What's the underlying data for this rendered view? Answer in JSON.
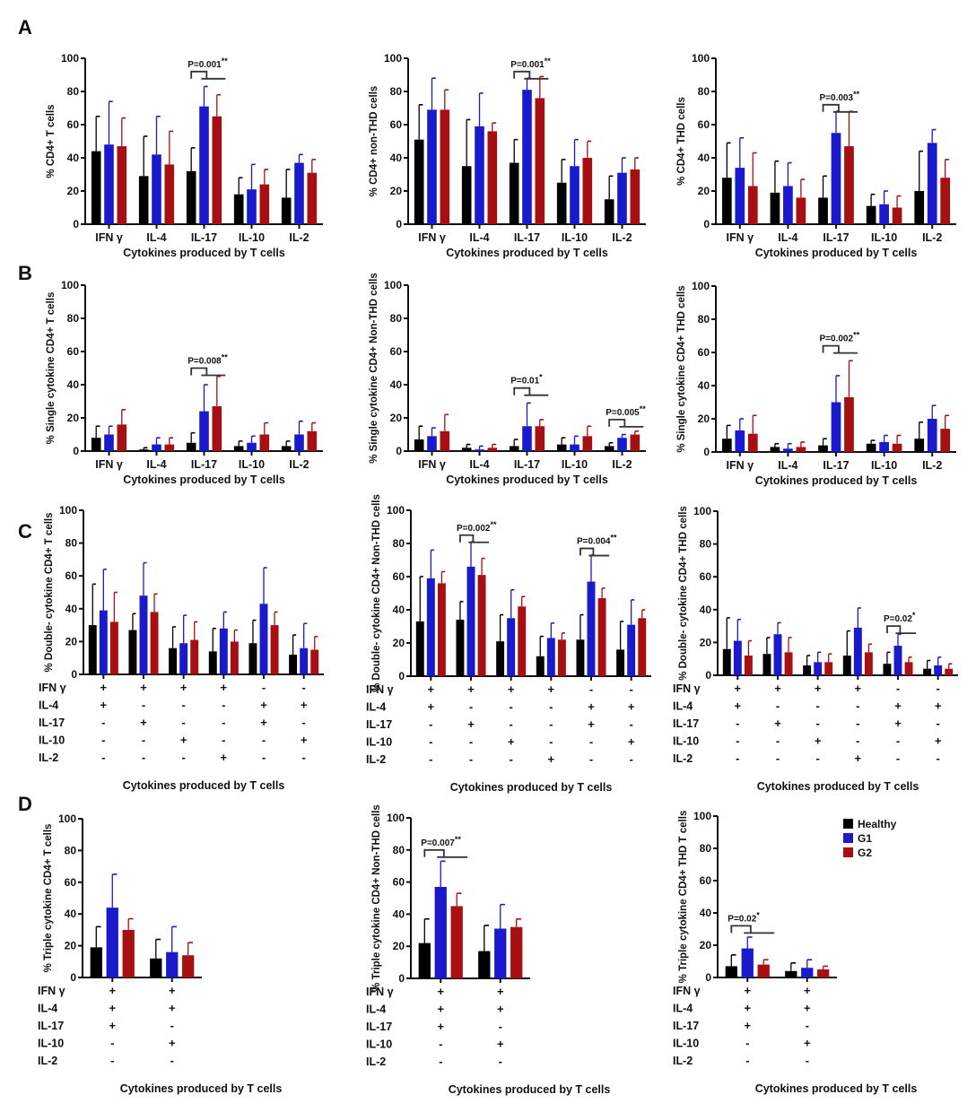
{
  "colors": {
    "Healthy": "#000000",
    "G1": "#1a1acc",
    "G2": "#a80f12",
    "axis": "#111111",
    "bracket": "#333333"
  },
  "panel_letters": [
    "A",
    "B",
    "C",
    "D"
  ],
  "legend": [
    {
      "label": "Healthy",
      "color": "#000000"
    },
    {
      "label": "G1",
      "color": "#1a1acc"
    },
    {
      "label": "G2",
      "color": "#a80f12"
    }
  ],
  "chart_data": [
    {
      "id": "A1",
      "panel": "A",
      "type": "bar",
      "title": "",
      "xlabel": "Cytokines produced by T cells",
      "ylabel": "% CD4+ T cells",
      "ylim": [
        0,
        100
      ],
      "yticks": [
        0,
        20,
        40,
        60,
        80,
        100
      ],
      "grid": false,
      "categories": [
        "IFN γ",
        "IL-4",
        "IL-17",
        "IL-10",
        "IL-2"
      ],
      "series": [
        {
          "name": "Healthy",
          "values": [
            44,
            29,
            32,
            18,
            16
          ],
          "errors": [
            21,
            24,
            14,
            10,
            17
          ]
        },
        {
          "name": "G1",
          "values": [
            48,
            42,
            71,
            21,
            37
          ],
          "errors": [
            26,
            23,
            12,
            15,
            5
          ]
        },
        {
          "name": "G2",
          "values": [
            47,
            36,
            65,
            24,
            31
          ],
          "errors": [
            17,
            20,
            13,
            9,
            8
          ]
        }
      ],
      "annotations": [
        {
          "category": 2,
          "label": "P=0.001",
          "stars": "**",
          "y": 92
        }
      ]
    },
    {
      "id": "A2",
      "panel": "A",
      "type": "bar",
      "title": "",
      "xlabel": "Cytokines produced by T cells",
      "ylabel": "% CD4+ non-THD cells",
      "ylim": [
        0,
        100
      ],
      "yticks": [
        0,
        20,
        40,
        60,
        80,
        100
      ],
      "grid": false,
      "categories": [
        "IFN γ",
        "IL-4",
        "IL-17",
        "IL-10",
        "IL-2"
      ],
      "series": [
        {
          "name": "Healthy",
          "values": [
            51,
            35,
            37,
            25,
            15
          ],
          "errors": [
            21,
            28,
            14,
            14,
            14
          ]
        },
        {
          "name": "G1",
          "values": [
            69,
            59,
            81,
            35,
            31
          ],
          "errors": [
            19,
            20,
            7,
            16,
            9
          ]
        },
        {
          "name": "G2",
          "values": [
            69,
            56,
            76,
            40,
            33
          ],
          "errors": [
            12,
            5,
            13,
            10,
            7
          ]
        }
      ],
      "annotations": [
        {
          "category": 2,
          "label": "P=0.001",
          "stars": "**",
          "y": 92
        }
      ]
    },
    {
      "id": "A3",
      "panel": "A",
      "type": "bar",
      "title": "",
      "xlabel": "Cytokines produced by T cells",
      "ylabel": "% CD4+ THD  cells",
      "ylim": [
        0,
        100
      ],
      "yticks": [
        0,
        20,
        40,
        60,
        80,
        100
      ],
      "grid": false,
      "categories": [
        "IFN γ",
        "IL-4",
        "IL-17",
        "IL-10",
        "IL-2"
      ],
      "series": [
        {
          "name": "Healthy",
          "values": [
            28,
            19,
            16,
            11,
            20
          ],
          "errors": [
            21,
            19,
            13,
            7,
            24
          ]
        },
        {
          "name": "G1",
          "values": [
            34,
            23,
            55,
            12,
            49
          ],
          "errors": [
            18,
            14,
            13,
            8,
            8
          ]
        },
        {
          "name": "G2",
          "values": [
            23,
            16,
            47,
            10,
            28
          ],
          "errors": [
            20,
            11,
            21,
            7,
            11
          ]
        }
      ],
      "annotations": [
        {
          "category": 2,
          "label": "P=0.003",
          "stars": "**",
          "y": 72
        }
      ]
    },
    {
      "id": "B1",
      "panel": "B",
      "type": "bar",
      "title": "",
      "xlabel": "Cytokines produced by T cells",
      "ylabel": "% Single cytokine CD4+ T cells",
      "ylim": [
        0,
        100
      ],
      "yticks": [
        0,
        20,
        40,
        60,
        80,
        100
      ],
      "grid": false,
      "categories": [
        "IFN γ",
        "IL-4",
        "IL-17",
        "IL-10",
        "IL-2"
      ],
      "series": [
        {
          "name": "Healthy",
          "values": [
            8,
            1,
            5,
            3,
            3
          ],
          "errors": [
            7,
            1,
            6,
            3,
            3
          ]
        },
        {
          "name": "G1",
          "values": [
            10,
            4,
            24,
            5,
            10
          ],
          "errors": [
            5,
            4,
            16,
            4,
            8
          ]
        },
        {
          "name": "G2",
          "values": [
            16,
            4,
            27,
            10,
            12
          ],
          "errors": [
            9,
            4,
            18,
            7,
            5
          ]
        }
      ],
      "annotations": [
        {
          "category": 2,
          "label": "P=0.008",
          "stars": "**",
          "y": 50
        }
      ]
    },
    {
      "id": "B2",
      "panel": "B",
      "type": "bar",
      "title": "",
      "xlabel": "Cytokines produced by T cells",
      "ylabel": "% Single cytokine CD4+ Non-THD cells",
      "ylim": [
        0,
        100
      ],
      "yticks": [
        0,
        20,
        40,
        60,
        80,
        100
      ],
      "grid": false,
      "categories": [
        "IFN γ",
        "IL-4",
        "IL-17",
        "IL-10",
        "IL-2"
      ],
      "series": [
        {
          "name": "Healthy",
          "values": [
            7,
            2,
            3,
            4,
            3
          ],
          "errors": [
            8,
            2,
            4,
            4,
            2
          ]
        },
        {
          "name": "G1",
          "values": [
            9,
            1,
            15,
            4,
            8
          ],
          "errors": [
            5,
            2,
            14,
            5,
            2
          ]
        },
        {
          "name": "G2",
          "values": [
            12,
            2,
            15,
            9,
            10
          ],
          "errors": [
            10,
            2,
            4,
            6,
            2
          ]
        }
      ],
      "annotations": [
        {
          "category": 2,
          "label": "P=0.01",
          "stars": "*",
          "y": 38
        },
        {
          "category": 4,
          "label": "P=0.005",
          "stars": "**",
          "y": 19
        }
      ]
    },
    {
      "id": "B3",
      "panel": "B",
      "type": "bar",
      "title": "",
      "xlabel": "Cytokines produced by T cells",
      "ylabel": "% Single cytokine CD4+ THD cells",
      "ylim": [
        0,
        100
      ],
      "yticks": [
        0,
        20,
        40,
        60,
        80,
        100
      ],
      "grid": false,
      "categories": [
        "IFN γ",
        "IL-4",
        "IL-17",
        "IL-10",
        "IL-2"
      ],
      "series": [
        {
          "name": "Healthy",
          "values": [
            8,
            3,
            4,
            5,
            8
          ],
          "errors": [
            8,
            2,
            4,
            2,
            10
          ]
        },
        {
          "name": "G1",
          "values": [
            13,
            2,
            30,
            6,
            20
          ],
          "errors": [
            7,
            3,
            16,
            4,
            8
          ]
        },
        {
          "name": "G2",
          "values": [
            11,
            3,
            33,
            5,
            14
          ],
          "errors": [
            11,
            3,
            22,
            5,
            8
          ]
        }
      ],
      "annotations": [
        {
          "category": 2,
          "label": "P=0.002",
          "stars": "**",
          "y": 64
        }
      ]
    },
    {
      "id": "C1",
      "panel": "C",
      "type": "bar",
      "title": "",
      "xlabel": "Cytokines produced by T cells",
      "ylabel": "% Double- cytokine CD4+ T cells",
      "ylim": [
        0,
        100
      ],
      "yticks": [
        0,
        20,
        40,
        60,
        80,
        100
      ],
      "grid": false,
      "row_labels": [
        "IFN γ",
        "IL-4",
        "IL-17",
        "IL-10",
        "IL-2"
      ],
      "categories": [
        [
          "+",
          "+",
          "-",
          "-",
          "-"
        ],
        [
          "+",
          "-",
          "+",
          "-",
          "-"
        ],
        [
          "+",
          "-",
          "-",
          "+",
          "-"
        ],
        [
          "+",
          "-",
          "-",
          "-",
          "+"
        ],
        [
          "-",
          "+",
          "+",
          "-",
          "-"
        ],
        [
          "-",
          "+",
          "-",
          "+",
          "-"
        ]
      ],
      "series": [
        {
          "name": "Healthy",
          "values": [
            30,
            27,
            16,
            14,
            19,
            12
          ],
          "errors": [
            25,
            10,
            13,
            14,
            14,
            12
          ]
        },
        {
          "name": "G1",
          "values": [
            39,
            48,
            19,
            28,
            43,
            16
          ],
          "errors": [
            25,
            20,
            17,
            10,
            22,
            15
          ]
        },
        {
          "name": "G2",
          "values": [
            32,
            38,
            21,
            20,
            30,
            15
          ],
          "errors": [
            18,
            11,
            11,
            7,
            8,
            8
          ]
        }
      ],
      "annotations": []
    },
    {
      "id": "C2",
      "panel": "C",
      "type": "bar",
      "title": "",
      "xlabel": "Cytokines produced by T cells",
      "ylabel": "% Double- cytokine CD4+ Non-THD cells",
      "ylim": [
        0,
        100
      ],
      "yticks": [
        0,
        20,
        40,
        60,
        80,
        100
      ],
      "grid": false,
      "row_labels": [
        "IFN γ",
        "IL-4",
        "IL-17",
        "IL-10",
        "IL-2"
      ],
      "categories": [
        [
          "+",
          "+",
          "-",
          "-",
          "-"
        ],
        [
          "+",
          "-",
          "+",
          "-",
          "-"
        ],
        [
          "+",
          "-",
          "-",
          "+",
          "-"
        ],
        [
          "+",
          "-",
          "-",
          "-",
          "+"
        ],
        [
          "-",
          "+",
          "+",
          "-",
          "-"
        ],
        [
          "-",
          "+",
          "-",
          "+",
          "-"
        ]
      ],
      "series": [
        {
          "name": "Healthy",
          "values": [
            33,
            34,
            21,
            12,
            22,
            16
          ],
          "errors": [
            27,
            11,
            16,
            12,
            15,
            17
          ]
        },
        {
          "name": "G1",
          "values": [
            59,
            66,
            35,
            23,
            57,
            31
          ],
          "errors": [
            17,
            15,
            17,
            9,
            16,
            15
          ]
        },
        {
          "name": "G2",
          "values": [
            56,
            61,
            42,
            22,
            47,
            35
          ],
          "errors": [
            7,
            10,
            6,
            4,
            6,
            5
          ]
        }
      ],
      "annotations": [
        {
          "category": 1,
          "label": "P=0.002",
          "stars": "**",
          "y": 85
        },
        {
          "category": 4,
          "label": "P=0.004",
          "stars": "**",
          "y": 77
        }
      ]
    },
    {
      "id": "C3",
      "panel": "C",
      "type": "bar",
      "title": "",
      "xlabel": "Cytokines produced by T cells",
      "ylabel": "% Double- cytokine CD4+ THD cells",
      "ylim": [
        0,
        100
      ],
      "yticks": [
        0,
        20,
        40,
        60,
        80,
        100
      ],
      "grid": false,
      "row_labels": [
        "IFN γ",
        "IL-4",
        "IL-17",
        "IL-10",
        "IL-2"
      ],
      "categories": [
        [
          "+",
          "+",
          "-",
          "-",
          "-"
        ],
        [
          "+",
          "-",
          "+",
          "-",
          "-"
        ],
        [
          "+",
          "-",
          "-",
          "+",
          "-"
        ],
        [
          "+",
          "-",
          "-",
          "-",
          "+"
        ],
        [
          "-",
          "+",
          "+",
          "-",
          "-"
        ],
        [
          "-",
          "+",
          "-",
          "+",
          "-"
        ]
      ],
      "series": [
        {
          "name": "Healthy",
          "values": [
            16,
            13,
            6,
            12,
            7,
            4
          ],
          "errors": [
            19,
            10,
            6,
            15,
            7,
            5
          ]
        },
        {
          "name": "G1",
          "values": [
            21,
            25,
            8,
            29,
            18,
            6
          ],
          "errors": [
            13,
            7,
            6,
            12,
            7,
            5
          ]
        },
        {
          "name": "G2",
          "values": [
            12,
            14,
            8,
            14,
            8,
            4
          ],
          "errors": [
            9,
            9,
            5,
            5,
            3,
            3
          ]
        }
      ],
      "annotations": [
        {
          "category": 4,
          "label": "P=0.02",
          "stars": "*",
          "y": 30
        }
      ]
    },
    {
      "id": "D1",
      "panel": "D",
      "type": "bar",
      "title": "",
      "xlabel": "Cytokines produced by T cells",
      "ylabel": "% Triple cytokine CD4+ T cells",
      "ylim": [
        0,
        100
      ],
      "yticks": [
        0,
        20,
        40,
        60,
        80,
        100
      ],
      "grid": false,
      "row_labels": [
        "IFN γ",
        "IL-4",
        "IL-17",
        "IL-10",
        "IL-2"
      ],
      "categories": [
        [
          "+",
          "+",
          "+",
          "-",
          "-"
        ],
        [
          "+",
          "+",
          "-",
          "+",
          "-"
        ]
      ],
      "series": [
        {
          "name": "Healthy",
          "values": [
            19,
            12
          ],
          "errors": [
            13,
            12
          ]
        },
        {
          "name": "G1",
          "values": [
            44,
            16
          ],
          "errors": [
            21,
            16
          ]
        },
        {
          "name": "G2",
          "values": [
            30,
            14
          ],
          "errors": [
            7,
            8
          ]
        }
      ],
      "annotations": []
    },
    {
      "id": "D2",
      "panel": "D",
      "type": "bar",
      "title": "",
      "xlabel": "Cytokines produced by T cells",
      "ylabel": "% Triple cytokine CD4+ Non-THD cells",
      "ylim": [
        0,
        100
      ],
      "yticks": [
        0,
        20,
        40,
        60,
        80,
        100
      ],
      "grid": false,
      "row_labels": [
        "IFN γ",
        "IL-4",
        "IL-17",
        "IL-10",
        "IL-2"
      ],
      "categories": [
        [
          "+",
          "+",
          "+",
          "-",
          "-"
        ],
        [
          "+",
          "+",
          "-",
          "+",
          "-"
        ]
      ],
      "series": [
        {
          "name": "Healthy",
          "values": [
            22,
            17
          ],
          "errors": [
            15,
            16
          ]
        },
        {
          "name": "G1",
          "values": [
            57,
            31
          ],
          "errors": [
            16,
            15
          ]
        },
        {
          "name": "G2",
          "values": [
            45,
            32
          ],
          "errors": [
            8,
            5
          ]
        }
      ],
      "annotations": [
        {
          "category": 0,
          "label": "P=0.007",
          "stars": "**",
          "y": 80
        }
      ]
    },
    {
      "id": "D3",
      "panel": "D",
      "type": "bar",
      "title": "",
      "xlabel": "Cytokines produced by T cells",
      "ylabel": "% Triple cytokine CD4+ THD T cells",
      "ylim": [
        0,
        100
      ],
      "yticks": [
        0,
        20,
        40,
        60,
        80,
        100
      ],
      "grid": false,
      "row_labels": [
        "IFN γ",
        "IL-4",
        "IL-17",
        "IL-10",
        "IL-2"
      ],
      "categories": [
        [
          "+",
          "+",
          "+",
          "-",
          "-"
        ],
        [
          "+",
          "+",
          "-",
          "+",
          "-"
        ]
      ],
      "series": [
        {
          "name": "Healthy",
          "values": [
            7,
            4
          ],
          "errors": [
            7,
            5
          ]
        },
        {
          "name": "G1",
          "values": [
            18,
            6
          ],
          "errors": [
            7,
            5
          ]
        },
        {
          "name": "G2",
          "values": [
            8,
            5
          ],
          "errors": [
            3,
            2
          ]
        }
      ],
      "annotations": [
        {
          "category": 0,
          "label": "P=0.02",
          "stars": "*",
          "y": 32
        }
      ],
      "legend": "top-right"
    }
  ]
}
